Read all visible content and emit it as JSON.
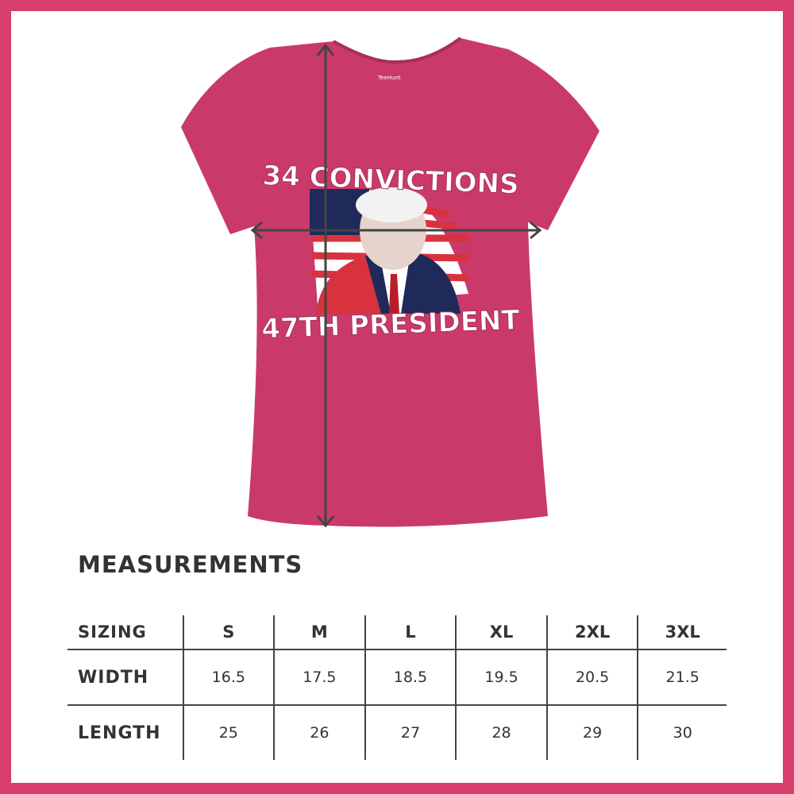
{
  "colors": {
    "border": "#d63f6e",
    "shirt": "#c93a6a",
    "text": "#333333"
  },
  "shirt": {
    "logo_text": "TeeHunt",
    "print_top": "34 CONVICTIONS",
    "print_bottom": "47TH PRESIDENT",
    "width_arrow_icon": "double-arrow-horizontal",
    "length_arrow_icon": "double-arrow-vertical"
  },
  "measurements": {
    "title": "MEASUREMENTS",
    "header": {
      "label": "SIZING",
      "sizes": [
        "S",
        "M",
        "L",
        "XL",
        "2XL",
        "3XL"
      ]
    },
    "rows": [
      {
        "label": "WIDTH",
        "values": [
          "16.5",
          "17.5",
          "18.5",
          "19.5",
          "20.5",
          "21.5"
        ]
      },
      {
        "label": "LENGTH",
        "values": [
          "25",
          "26",
          "27",
          "28",
          "29",
          "30"
        ]
      }
    ]
  }
}
